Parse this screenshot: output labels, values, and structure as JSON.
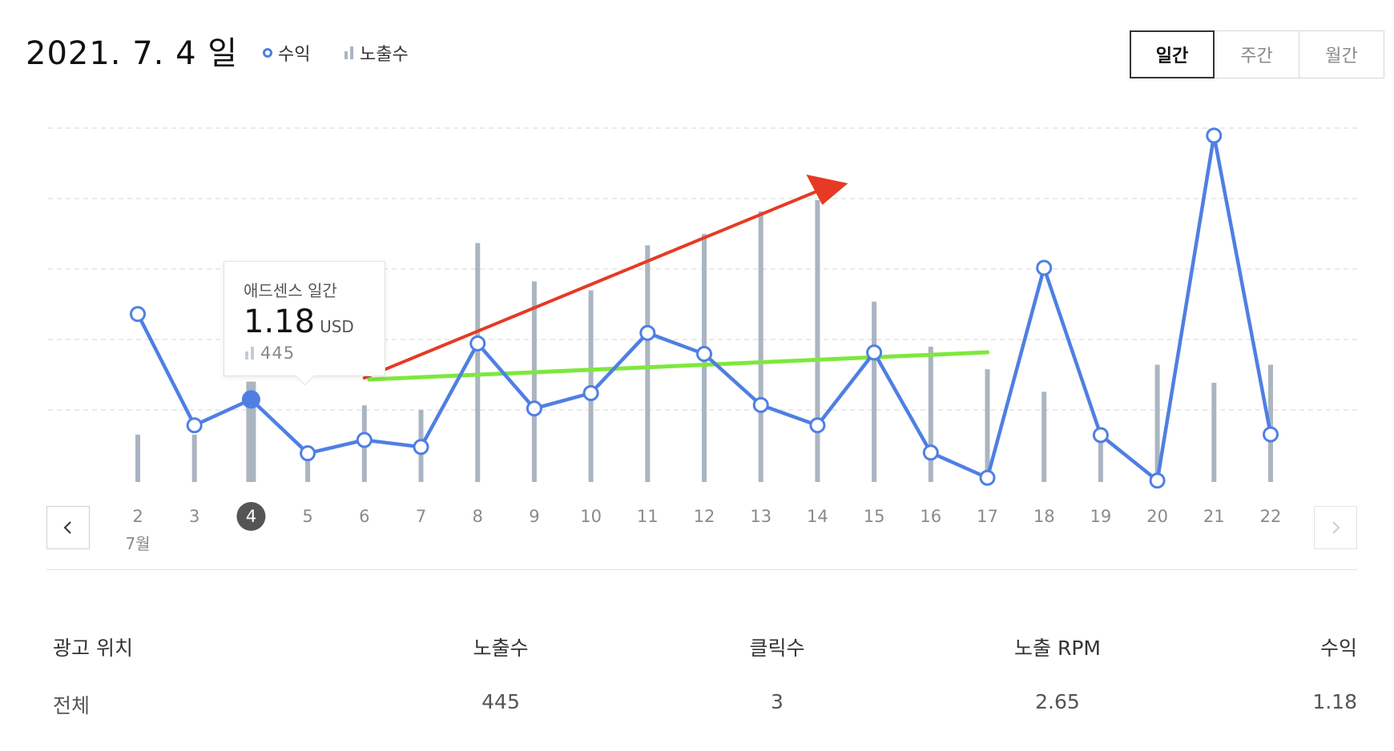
{
  "header": {
    "date_title": "2021. 7. 4 일",
    "legend_revenue": "수익",
    "legend_impressions": "노출수"
  },
  "period_tabs": [
    {
      "label": "일간",
      "active": true
    },
    {
      "label": "주간",
      "active": false
    },
    {
      "label": "월간",
      "active": false
    }
  ],
  "colors": {
    "revenue_line": "#4f7fe3",
    "impression_bar": "#aab5c1",
    "selected_badge": "#555555",
    "annotation_red": "#e63a24",
    "annotation_green": "#7ee83c"
  },
  "chart_data": {
    "type": "line",
    "categories": [
      "2",
      "3",
      "4",
      "5",
      "6",
      "7",
      "8",
      "9",
      "10",
      "11",
      "12",
      "13",
      "14",
      "15",
      "16",
      "17",
      "18",
      "19",
      "20",
      "21",
      "22"
    ],
    "month_label": "7월",
    "selected_day": "4",
    "series": [
      {
        "name": "수익",
        "kind": "line",
        "values": [
          2.4,
          0.81,
          1.18,
          0.41,
          0.6,
          0.5,
          1.98,
          1.05,
          1.27,
          2.13,
          1.83,
          1.1,
          0.81,
          1.85,
          0.42,
          0.06,
          3.06,
          0.67,
          0.02,
          4.95,
          0.68
        ]
      },
      {
        "name": "노출수",
        "kind": "bar",
        "values": [
          210,
          210,
          445,
          160,
          340,
          320,
          1060,
          890,
          850,
          1050,
          1100,
          1200,
          1250,
          800,
          600,
          500,
          400,
          220,
          520,
          440,
          520
        ]
      }
    ],
    "icon_names": [
      "chevron-left-icon",
      "chevron-right-icon",
      "bar-chart-icon"
    ],
    "grid": true,
    "annotations": [
      {
        "type": "arrow",
        "color": "red",
        "from_day": "6",
        "to_day": "14"
      },
      {
        "type": "line",
        "color": "green",
        "from_day": "6",
        "to_day": "17"
      }
    ]
  },
  "tooltip": {
    "title": "애드센스 일간",
    "value": "1.18",
    "unit": "USD",
    "impressions": "445"
  },
  "table": {
    "headers": [
      "광고 위치",
      "노출수",
      "클릭수",
      "노출 RPM",
      "수익"
    ],
    "rows": [
      [
        "전체",
        "445",
        "3",
        "2.65",
        "1.18"
      ]
    ]
  }
}
